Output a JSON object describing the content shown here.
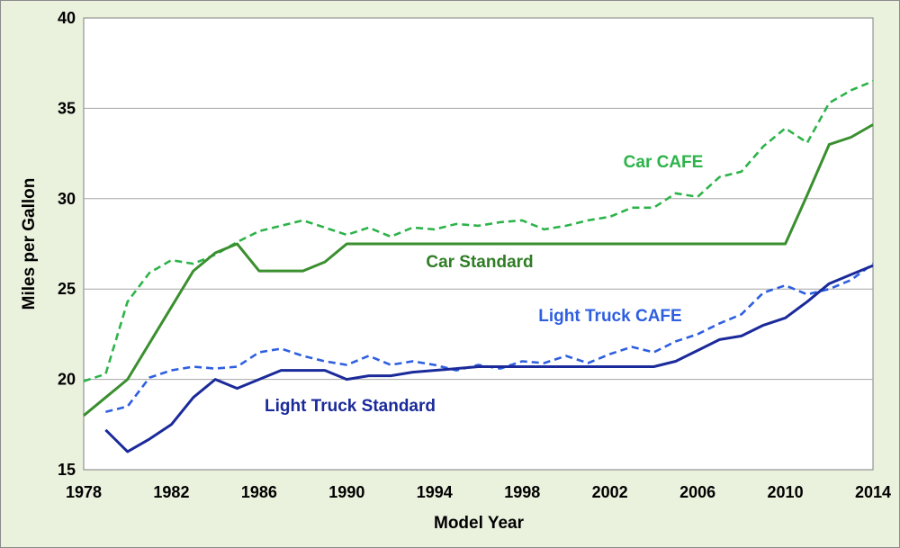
{
  "chart_data": {
    "type": "line",
    "xlabel": "Model Year",
    "ylabel": "Miles per Gallon",
    "xlim": [
      1978,
      2014
    ],
    "ylim": [
      15,
      40
    ],
    "x_ticks": [
      "1978",
      "1982",
      "1986",
      "1990",
      "1994",
      "1998",
      "2002",
      "2006",
      "2010",
      "2014"
    ],
    "y_ticks": [
      "15",
      "20",
      "25",
      "30",
      "35",
      "40"
    ],
    "grid": "horizontal",
    "series": [
      {
        "name": "Car CAFE",
        "color": "#2db34a",
        "dash": "dashed",
        "x": [
          1978,
          1979,
          1980,
          1981,
          1982,
          1983,
          1984,
          1985,
          1986,
          1987,
          1988,
          1989,
          1990,
          1991,
          1992,
          1993,
          1994,
          1995,
          1996,
          1997,
          1998,
          1999,
          2000,
          2001,
          2002,
          2003,
          2004,
          2005,
          2006,
          2007,
          2008,
          2009,
          2010,
          2011,
          2012,
          2013,
          2014
        ],
        "y": [
          19.9,
          20.3,
          24.3,
          25.9,
          26.6,
          26.4,
          26.9,
          27.6,
          28.2,
          28.5,
          28.8,
          28.4,
          28.0,
          28.4,
          27.9,
          28.4,
          28.3,
          28.6,
          28.5,
          28.7,
          28.8,
          28.3,
          28.5,
          28.8,
          29.0,
          29.5,
          29.5,
          30.3,
          30.1,
          31.2,
          31.5,
          32.9,
          33.9,
          33.1,
          35.3,
          36.0,
          36.5
        ]
      },
      {
        "name": "Car Standard",
        "color": "#3a8f2e",
        "dash": "solid",
        "x": [
          1978,
          1979,
          1980,
          1981,
          1982,
          1983,
          1984,
          1985,
          1986,
          1987,
          1988,
          1989,
          1990,
          1991,
          1992,
          1993,
          1994,
          1995,
          1996,
          1997,
          1998,
          1999,
          2000,
          2001,
          2002,
          2003,
          2004,
          2005,
          2006,
          2007,
          2008,
          2009,
          2010,
          2011,
          2012,
          2013,
          2014
        ],
        "y": [
          18.0,
          19.0,
          20.0,
          22.0,
          24.0,
          26.0,
          27.0,
          27.5,
          26.0,
          26.0,
          26.0,
          26.5,
          27.5,
          27.5,
          27.5,
          27.5,
          27.5,
          27.5,
          27.5,
          27.5,
          27.5,
          27.5,
          27.5,
          27.5,
          27.5,
          27.5,
          27.5,
          27.5,
          27.5,
          27.5,
          27.5,
          27.5,
          27.5,
          30.2,
          33.0,
          33.4,
          34.1
        ]
      },
      {
        "name": "Light Truck CAFE",
        "color": "#2e5fe0",
        "dash": "dashed",
        "x": [
          1979,
          1980,
          1981,
          1982,
          1983,
          1984,
          1985,
          1986,
          1987,
          1988,
          1989,
          1990,
          1991,
          1992,
          1993,
          1994,
          1995,
          1996,
          1997,
          1998,
          1999,
          2000,
          2001,
          2002,
          2003,
          2004,
          2005,
          2006,
          2007,
          2008,
          2009,
          2010,
          2011,
          2012,
          2013,
          2014
        ],
        "y": [
          18.2,
          18.5,
          20.1,
          20.5,
          20.7,
          20.6,
          20.7,
          21.5,
          21.7,
          21.3,
          21.0,
          20.8,
          21.3,
          20.8,
          21.0,
          20.8,
          20.5,
          20.8,
          20.6,
          21.0,
          20.9,
          21.3,
          20.9,
          21.4,
          21.8,
          21.5,
          22.1,
          22.5,
          23.1,
          23.6,
          24.8,
          25.2,
          24.7,
          25.0,
          25.5,
          26.4
        ]
      },
      {
        "name": "Light Truck Standard",
        "color": "#1a2a9a",
        "dash": "solid",
        "x": [
          1979,
          1980,
          1981,
          1982,
          1983,
          1984,
          1985,
          1986,
          1987,
          1988,
          1989,
          1990,
          1991,
          1992,
          1993,
          1994,
          1995,
          1996,
          1997,
          1998,
          1999,
          2000,
          2001,
          2002,
          2003,
          2004,
          2005,
          2006,
          2007,
          2008,
          2009,
          2010,
          2011,
          2012,
          2013,
          2014
        ],
        "y": [
          17.2,
          16.0,
          16.7,
          17.5,
          19.0,
          20.0,
          19.5,
          20.0,
          20.5,
          20.5,
          20.5,
          20.0,
          20.2,
          20.2,
          20.4,
          20.5,
          20.6,
          20.7,
          20.7,
          20.7,
          20.7,
          20.7,
          20.7,
          20.7,
          20.7,
          20.7,
          21.0,
          21.6,
          22.2,
          22.4,
          23.0,
          23.4,
          24.3,
          25.3,
          25.8,
          26.3
        ]
      }
    ]
  }
}
